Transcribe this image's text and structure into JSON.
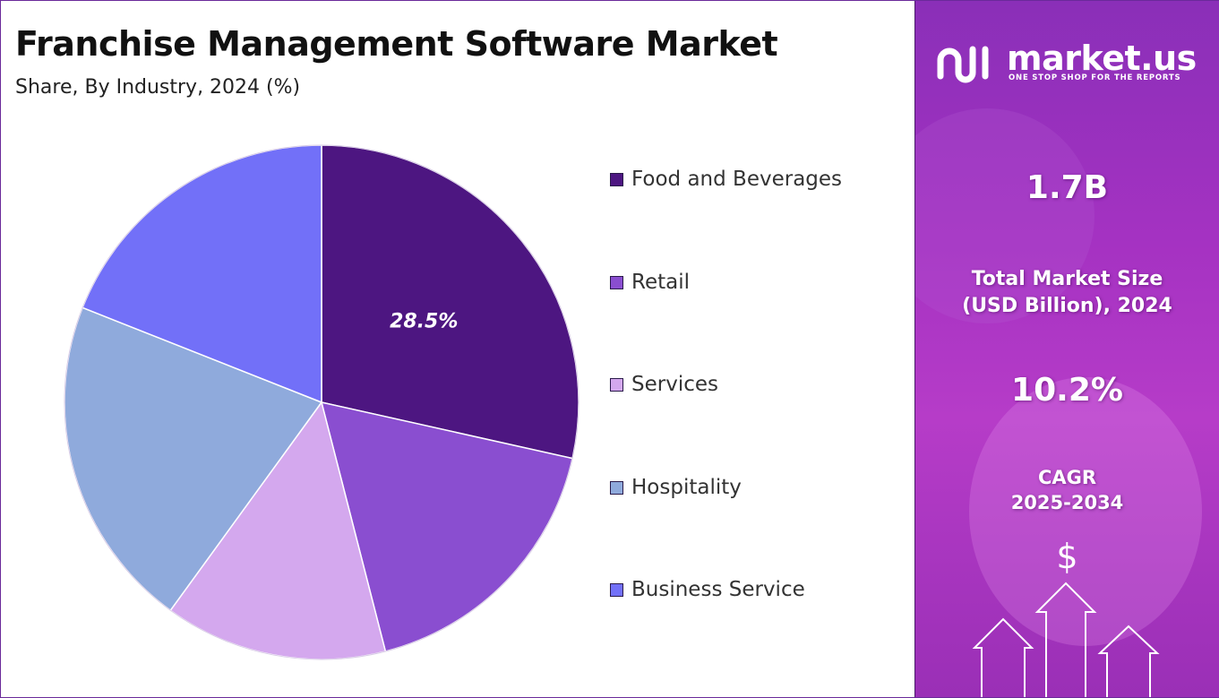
{
  "chart_data": {
    "type": "pie",
    "title": "Franchise Management Software Market",
    "subtitle": "Share, By Industry, 2024 (%)",
    "slices": [
      {
        "name": "Food and Beverages",
        "value": 28.5,
        "color": "#4d1681",
        "label": "28.5%"
      },
      {
        "name": "Retail",
        "value": 17.5,
        "color": "#8a4ed0",
        "label": ""
      },
      {
        "name": "Services",
        "value": 14.0,
        "color": "#d4a8ee",
        "label": ""
      },
      {
        "name": "Hospitality",
        "value": 21.0,
        "color": "#8faadc",
        "label": ""
      },
      {
        "name": "Business Service",
        "value": 19.0,
        "color": "#7270f8",
        "label": ""
      }
    ],
    "legend_position": "right"
  },
  "side_panel": {
    "brand": "market.us",
    "tagline": "ONE STOP SHOP FOR THE REPORTS",
    "market_size_value": "1.7B",
    "market_size_label_1": "Total Market Size",
    "market_size_label_2": "(USD Billion), 2024",
    "cagr_value": "10.2%",
    "cagr_label_1": "CAGR",
    "cagr_label_2": "2025-2034",
    "dollar_symbol": "$",
    "icons": [
      "logo-icon",
      "dollar-icon",
      "arrow-up-icon"
    ]
  }
}
